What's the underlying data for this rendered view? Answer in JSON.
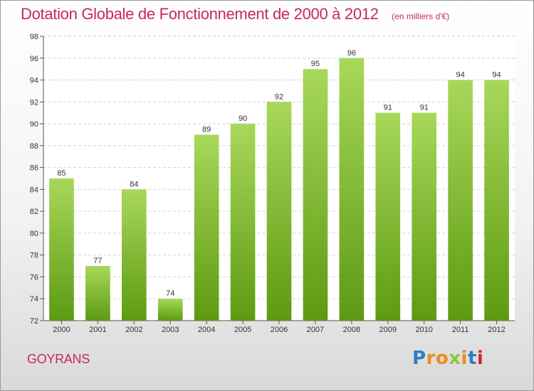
{
  "title": "Dotation Globale de Fonctionnement de 2000 à 2012",
  "unit_note": "(en milliers d'€)",
  "commune": "GOYRANS",
  "logo": {
    "letters": [
      "P",
      "r",
      "o",
      "x",
      "i",
      "t",
      "i"
    ],
    "colors": [
      "#2d7fc1",
      "#f08a1c",
      "#f08a1c",
      "#8cc63f",
      "#f08a1c",
      "#2d7fc1",
      "#d8232a"
    ]
  },
  "colors": {
    "bar_top": "#a8d85a",
    "bar_bottom": "#5d9a12",
    "title": "#c8275c",
    "axis": "#333333"
  },
  "chart_data": {
    "type": "bar",
    "categories": [
      "2000",
      "2001",
      "2002",
      "2003",
      "2004",
      "2005",
      "2006",
      "2007",
      "2008",
      "2009",
      "2010",
      "2011",
      "2012"
    ],
    "values": [
      85,
      77,
      84,
      74,
      89,
      90,
      92,
      95,
      96,
      91,
      91,
      94,
      94
    ],
    "ylim": [
      72,
      98
    ],
    "yticks": [
      72,
      74,
      76,
      78,
      80,
      82,
      84,
      86,
      88,
      90,
      92,
      94,
      96,
      98
    ],
    "grid": true
  }
}
